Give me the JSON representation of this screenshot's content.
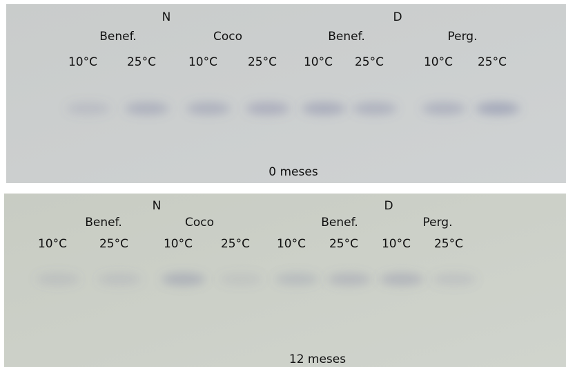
{
  "panels": [
    {
      "treatments": [
        "N",
        "D"
      ],
      "groups": [
        "Benef.",
        "Coco",
        "Benef.",
        "Perg."
      ],
      "temperatures": [
        "10°C",
        "25°C",
        "10°C",
        "25°C",
        "10°C",
        "25°C",
        "10°C",
        "25°C"
      ],
      "caption": "0 meses"
    },
    {
      "treatments": [
        "N",
        "D"
      ],
      "groups": [
        "Benef.",
        "Coco",
        "Benef.",
        "Perg."
      ],
      "temperatures": [
        "10°C",
        "25°C",
        "10°C",
        "25°C",
        "10°C",
        "25°C",
        "10°C",
        "25°C"
      ],
      "caption": "12 meses"
    }
  ]
}
